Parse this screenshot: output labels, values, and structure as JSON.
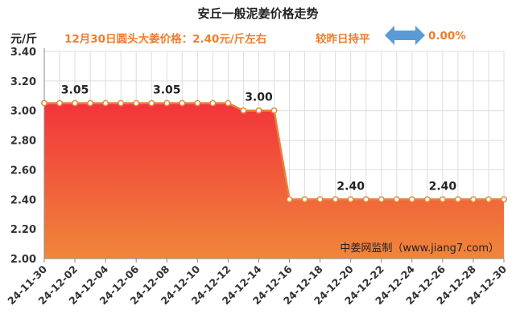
{
  "header": {
    "title": "安丘一般泥姜价格走势",
    "unit": "元/斤",
    "subtitle": "12月30日圆头大姜价格：2.40元/斤左右",
    "compare_text": "较昨日持平",
    "change_text": "0.00%"
  },
  "chart_data": {
    "type": "area",
    "title": "安丘一般泥姜价格走势",
    "ylabel": "元/斤",
    "ylim": [
      2.0,
      3.4
    ],
    "yticks": [
      "2.00",
      "2.20",
      "2.40",
      "2.60",
      "2.80",
      "3.00",
      "3.20",
      "3.40"
    ],
    "grid": true,
    "x": [
      "24-11-30",
      "24-12-01",
      "24-12-02",
      "24-12-03",
      "24-12-04",
      "24-12-05",
      "24-12-06",
      "24-12-07",
      "24-12-08",
      "24-12-09",
      "24-12-10",
      "24-12-11",
      "24-12-12",
      "24-12-13",
      "24-12-14",
      "24-12-15",
      "24-12-16",
      "24-12-17",
      "24-12-18",
      "24-12-19",
      "24-12-20",
      "24-12-21",
      "24-12-22",
      "24-12-23",
      "24-12-24",
      "24-12-25",
      "24-12-26",
      "24-12-27",
      "24-12-28",
      "24-12-29",
      "24-12-30"
    ],
    "x_tick_labels": [
      "24-11-30",
      "24-12-02",
      "24-12-04",
      "24-12-06",
      "24-12-08",
      "24-12-10",
      "24-12-12",
      "24-12-14",
      "24-12-16",
      "24-12-18",
      "24-12-20",
      "24-12-22",
      "24-12-24",
      "24-12-26",
      "24-12-28",
      "24-12-30"
    ],
    "values": [
      3.05,
      3.05,
      3.05,
      3.05,
      3.05,
      3.05,
      3.05,
      3.05,
      3.05,
      3.05,
      3.05,
      3.05,
      3.05,
      3.0,
      3.0,
      3.0,
      2.4,
      2.4,
      2.4,
      2.4,
      2.4,
      2.4,
      2.4,
      2.4,
      2.4,
      2.4,
      2.4,
      2.4,
      2.4,
      2.4,
      2.4
    ],
    "data_labels": [
      {
        "index": 2,
        "text": "3.05"
      },
      {
        "index": 8,
        "text": "3.05"
      },
      {
        "index": 14,
        "text": "3.00"
      },
      {
        "index": 20,
        "text": "2.40"
      },
      {
        "index": 26,
        "text": "2.40"
      }
    ],
    "annotation": "中姜网监制（www.jiang7.com）",
    "colors": {
      "line": "#e8843a",
      "fill_top": "#f2343b",
      "fill_bottom": "#f0863a",
      "label": "#222222",
      "grid": "#dddddd"
    }
  }
}
